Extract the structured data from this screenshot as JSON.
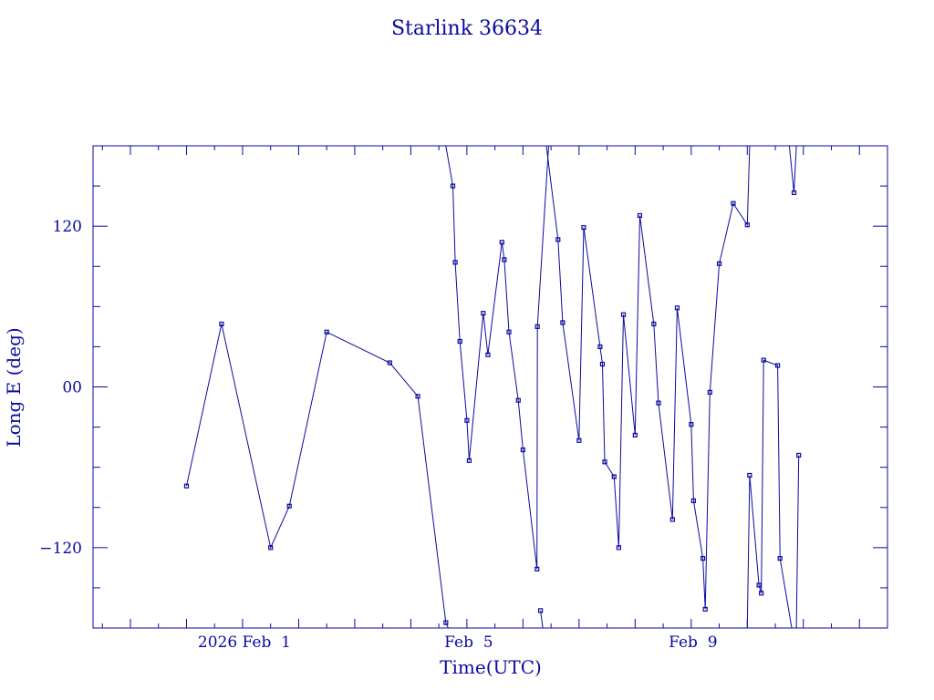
{
  "chart_data": {
    "type": "line",
    "title": "Starlink 36634",
    "xlabel": "Time(UTC)",
    "ylabel": "Long E (deg)",
    "x_unit": "days",
    "xlim": [
      "2026-01-29T08:00",
      "2026-02-12T12:00"
    ],
    "ylim": [
      -180,
      180
    ],
    "x_ticks": [
      {
        "x": "2026-02-01T00:00",
        "label": "2026 Feb  1"
      },
      {
        "x": "2026-02-05T00:00",
        "label": "Feb  5"
      },
      {
        "x": "2026-02-09T00:00",
        "label": "Feb  9"
      }
    ],
    "y_ticks": [
      {
        "y": 120,
        "label": "120"
      },
      {
        "y": 0,
        "label": "00"
      },
      {
        "y": -120,
        "label": "−120"
      }
    ],
    "grid": false,
    "colors": {
      "line": "#0a0aa0",
      "axes": "#0a0aa0",
      "text": "#0a0aa0"
    },
    "segments": [
      [
        {
          "t": "2026-01-31T00:00",
          "lon": -74
        },
        {
          "t": "2026-01-31T15:00",
          "lon": 47
        },
        {
          "t": "2026-02-01T12:00",
          "lon": -120
        },
        {
          "t": "2026-02-01T20:00",
          "lon": -89
        },
        {
          "t": "2026-02-02T12:00",
          "lon": 41
        },
        {
          "t": "2026-02-03T15:00",
          "lon": 18
        },
        {
          "t": "2026-02-04T03:00",
          "lon": -7
        },
        {
          "t": "2026-02-04T15:00",
          "lon": -176
        },
        {
          "t": "2026-02-04T16:00",
          "lon": -180
        }
      ],
      [
        {
          "t": "2026-02-04T15:00",
          "lon": 180
        },
        {
          "t": "2026-02-04T18:00",
          "lon": 150
        },
        {
          "t": "2026-02-04T19:00",
          "lon": 93
        },
        {
          "t": "2026-02-04T21:00",
          "lon": 34
        },
        {
          "t": "2026-02-05T00:00",
          "lon": -25
        },
        {
          "t": "2026-02-05T01:00",
          "lon": -55
        },
        {
          "t": "2026-02-05T07:00",
          "lon": 55
        },
        {
          "t": "2026-02-05T09:00",
          "lon": 24
        },
        {
          "t": "2026-02-05T15:00",
          "lon": 108
        },
        {
          "t": "2026-02-05T16:00",
          "lon": 95
        },
        {
          "t": "2026-02-05T18:00",
          "lon": 41
        },
        {
          "t": "2026-02-05T22:00",
          "lon": -10
        },
        {
          "t": "2026-02-06T00:00",
          "lon": -47
        },
        {
          "t": "2026-02-06T06:00",
          "lon": -136
        },
        {
          "t": "2026-02-06T06:10",
          "lon": 45
        },
        {
          "t": "2026-02-06T11:00",
          "lon": 180
        }
      ],
      [
        {
          "t": "2026-02-06T07:30",
          "lon": -167
        },
        {
          "t": "2026-02-06T08:30",
          "lon": -180
        }
      ],
      [
        {
          "t": "2026-02-06T10:00",
          "lon": 180
        },
        {
          "t": "2026-02-06T15:00",
          "lon": 110
        },
        {
          "t": "2026-02-06T17:00",
          "lon": 48
        },
        {
          "t": "2026-02-07T00:00",
          "lon": -40
        },
        {
          "t": "2026-02-07T02:00",
          "lon": 119
        },
        {
          "t": "2026-02-07T09:00",
          "lon": 30
        },
        {
          "t": "2026-02-07T10:00",
          "lon": 17
        },
        {
          "t": "2026-02-07T11:00",
          "lon": -56
        },
        {
          "t": "2026-02-07T15:00",
          "lon": -67
        },
        {
          "t": "2026-02-07T17:00",
          "lon": -120
        },
        {
          "t": "2026-02-07T19:00",
          "lon": 54
        },
        {
          "t": "2026-02-08T00:00",
          "lon": -36
        },
        {
          "t": "2026-02-08T02:00",
          "lon": 128
        },
        {
          "t": "2026-02-08T08:00",
          "lon": 47
        },
        {
          "t": "2026-02-08T10:00",
          "lon": -12
        },
        {
          "t": "2026-02-08T16:00",
          "lon": -99
        },
        {
          "t": "2026-02-08T18:00",
          "lon": 59
        },
        {
          "t": "2026-02-09T00:00",
          "lon": -28
        },
        {
          "t": "2026-02-09T01:00",
          "lon": -85
        },
        {
          "t": "2026-02-09T05:00",
          "lon": -128
        },
        {
          "t": "2026-02-09T06:00",
          "lon": -166
        },
        {
          "t": "2026-02-09T08:00",
          "lon": -4
        },
        {
          "t": "2026-02-09T12:00",
          "lon": 92
        },
        {
          "t": "2026-02-09T18:00",
          "lon": 137
        },
        {
          "t": "2026-02-10T00:00",
          "lon": 121
        },
        {
          "t": "2026-02-10T01:00",
          "lon": 180
        }
      ],
      [
        {
          "t": "2026-02-10T00:00",
          "lon": -180
        },
        {
          "t": "2026-02-10T01:00",
          "lon": -66
        },
        {
          "t": "2026-02-10T05:00",
          "lon": -148
        },
        {
          "t": "2026-02-10T06:00",
          "lon": -154
        },
        {
          "t": "2026-02-10T07:00",
          "lon": 20
        },
        {
          "t": "2026-02-10T13:00",
          "lon": 16
        },
        {
          "t": "2026-02-10T14:00",
          "lon": -128
        },
        {
          "t": "2026-02-10T19:00",
          "lon": -180
        }
      ],
      [
        {
          "t": "2026-02-10T18:00",
          "lon": 180
        },
        {
          "t": "2026-02-10T20:00",
          "lon": 145
        },
        {
          "t": "2026-02-10T21:00",
          "lon": 180
        }
      ],
      [
        {
          "t": "2026-02-10T21:00",
          "lon": -180
        },
        {
          "t": "2026-02-10T22:00",
          "lon": -51
        }
      ]
    ]
  }
}
